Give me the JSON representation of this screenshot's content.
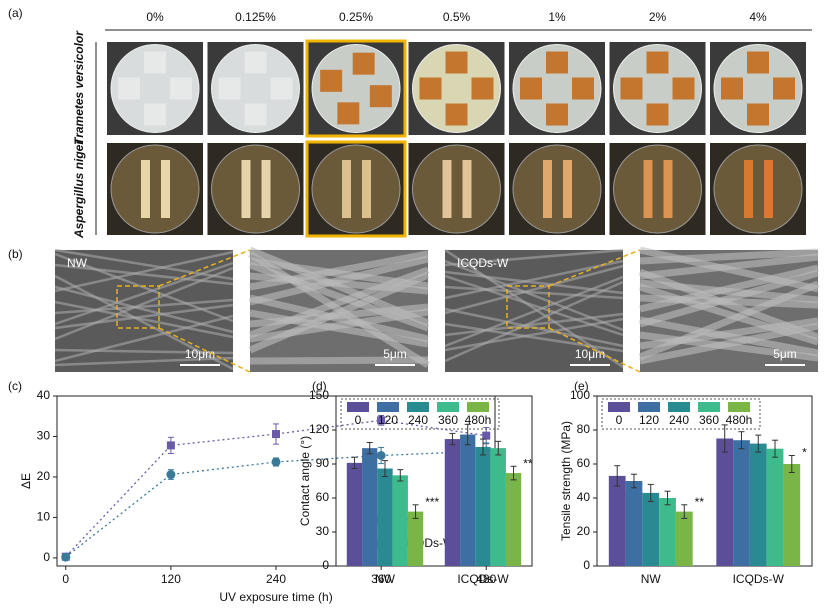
{
  "panel_labels": [
    "(a)",
    "(b)",
    "(c)",
    "(d)",
    "(e)"
  ],
  "concentrations": [
    "0%",
    "0.125%",
    "0.25%",
    "0.5%",
    "1%",
    "2%",
    "4%"
  ],
  "species": [
    "Trametes versicolor",
    "Aspergillus niger"
  ],
  "sem": [
    {
      "label": "NW",
      "scale": "10μm"
    },
    {
      "label": "",
      "scale": "5μm"
    },
    {
      "label": "ICQDs-W",
      "scale": "10μm"
    },
    {
      "label": "",
      "scale": "5μm"
    }
  ],
  "chart_data": [
    {
      "type": "line",
      "xlabel": "UV exposure time (h)",
      "ylabel": "ΔE",
      "x": [
        0,
        120,
        240,
        360,
        480
      ],
      "xlim": [
        -10,
        490
      ],
      "xticks": [
        0,
        120,
        240,
        360,
        480
      ],
      "ylim": [
        -2,
        40
      ],
      "yticks": [
        0,
        10,
        20,
        30,
        40
      ],
      "legend": "lower right",
      "series": [
        {
          "name": "NW",
          "color": "#6a5aa8",
          "marker": "square",
          "values": [
            0.3,
            27.8,
            30.6,
            34,
            30.2
          ],
          "errors": [
            0.3,
            2,
            2.5,
            1.2,
            2
          ]
        },
        {
          "name": "ICQDs-W",
          "color": "#3a7a99",
          "marker": "circle",
          "values": [
            0.2,
            20.6,
            23.7,
            25.3,
            26.4
          ],
          "errors": [
            0.3,
            1.2,
            1,
            2,
            2
          ]
        }
      ]
    },
    {
      "type": "bar",
      "ylabel": "Contact angle (°)",
      "categories": [
        "NW",
        "ICQDs-W"
      ],
      "ylim": [
        0,
        150
      ],
      "yticks": [
        0,
        30,
        60,
        90,
        120,
        150
      ],
      "legend": "upper left",
      "series": [
        {
          "name": "0",
          "color": "#5b4f9a",
          "values": [
            91,
            112
          ],
          "errors": [
            5,
            5
          ]
        },
        {
          "name": "120",
          "color": "#3d6fa3",
          "values": [
            104,
            116
          ],
          "errors": [
            5,
            9
          ]
        },
        {
          "name": "240",
          "color": "#2a8a92",
          "values": [
            86,
            105
          ],
          "errors": [
            7,
            7
          ]
        },
        {
          "name": "360",
          "color": "#3dbb8c",
          "values": [
            80,
            104
          ],
          "errors": [
            5,
            6
          ]
        },
        {
          "name": "480h",
          "color": "#7ab547",
          "values": [
            48,
            82
          ],
          "errors": [
            6,
            6
          ],
          "annotations": [
            "***",
            "**"
          ]
        }
      ]
    },
    {
      "type": "bar",
      "ylabel": "Tensile strength (MPa)",
      "categories": [
        "NW",
        "ICQDs-W"
      ],
      "ylim": [
        0,
        100
      ],
      "yticks": [
        0,
        20,
        40,
        60,
        80,
        100
      ],
      "legend": "upper left",
      "series": [
        {
          "name": "0",
          "color": "#5b4f9a",
          "values": [
            53,
            75
          ],
          "errors": [
            6,
            8
          ]
        },
        {
          "name": "120",
          "color": "#3d6fa3",
          "values": [
            50,
            74
          ],
          "errors": [
            4,
            5
          ]
        },
        {
          "name": "240",
          "color": "#2a8a92",
          "values": [
            43,
            72
          ],
          "errors": [
            5,
            5
          ]
        },
        {
          "name": "360",
          "color": "#3dbb8c",
          "values": [
            40,
            69
          ],
          "errors": [
            4,
            5
          ]
        },
        {
          "name": "480h",
          "color": "#7ab547",
          "values": [
            32,
            60
          ],
          "errors": [
            4,
            5
          ],
          "annotations": [
            "**",
            "*"
          ]
        }
      ]
    }
  ]
}
